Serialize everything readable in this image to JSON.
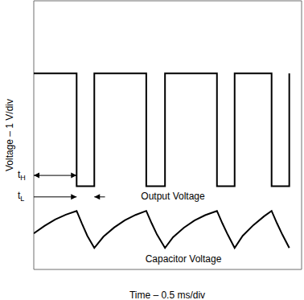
{
  "chart_data": {
    "type": "line",
    "xlabel": "Time – 0.5 ms/div",
    "ylabel": "Voltage – 1 V/div",
    "xlim": [
      0,
      5
    ],
    "xticks": [
      0,
      0.5,
      1,
      1.5,
      2,
      2.5,
      3,
      3.5,
      4,
      4.5,
      5
    ],
    "ylim": [
      0,
      10
    ],
    "yticks": [
      0,
      1,
      2,
      3,
      4,
      5,
      6,
      7,
      8,
      9,
      10
    ],
    "grid": true,
    "tick_labels": false,
    "series": [
      {
        "name": "Output Voltage",
        "color": "#000000",
        "x": [
          0,
          0.8,
          0.8,
          1.13,
          1.13,
          2.1,
          2.1,
          2.45,
          2.45,
          3.42,
          3.42,
          3.75,
          3.75,
          4.44,
          4.44,
          4.77,
          4.77
        ],
        "values": [
          7.3,
          7.3,
          3.1,
          3.1,
          7.3,
          7.3,
          3.1,
          3.1,
          7.3,
          7.3,
          3.1,
          3.1,
          7.3,
          7.3,
          3.1,
          3.1,
          7.3
        ]
      },
      {
        "name": "Capacitor Voltage",
        "color": "#000000",
        "x": [
          0,
          0.2,
          0.4,
          0.6,
          0.8,
          0.9,
          1.0,
          1.13,
          1.3,
          1.5,
          1.7,
          1.9,
          2.1,
          2.2,
          2.3,
          2.45,
          2.6,
          2.8,
          3.0,
          3.2,
          3.42,
          3.52,
          3.62,
          3.75,
          3.9,
          4.1,
          4.3,
          4.44,
          4.54,
          4.64,
          4.77
        ],
        "values": [
          1.34,
          1.62,
          1.86,
          2.04,
          2.18,
          1.7,
          1.25,
          0.8,
          1.22,
          1.56,
          1.83,
          2.03,
          2.18,
          1.72,
          1.3,
          0.8,
          1.2,
          1.55,
          1.82,
          2.02,
          2.18,
          1.72,
          1.3,
          0.8,
          1.25,
          1.65,
          1.98,
          2.18,
          1.72,
          1.3,
          0.8
        ]
      }
    ],
    "annotations": [
      {
        "text": "tH"
      },
      {
        "text": "tL"
      }
    ]
  }
}
